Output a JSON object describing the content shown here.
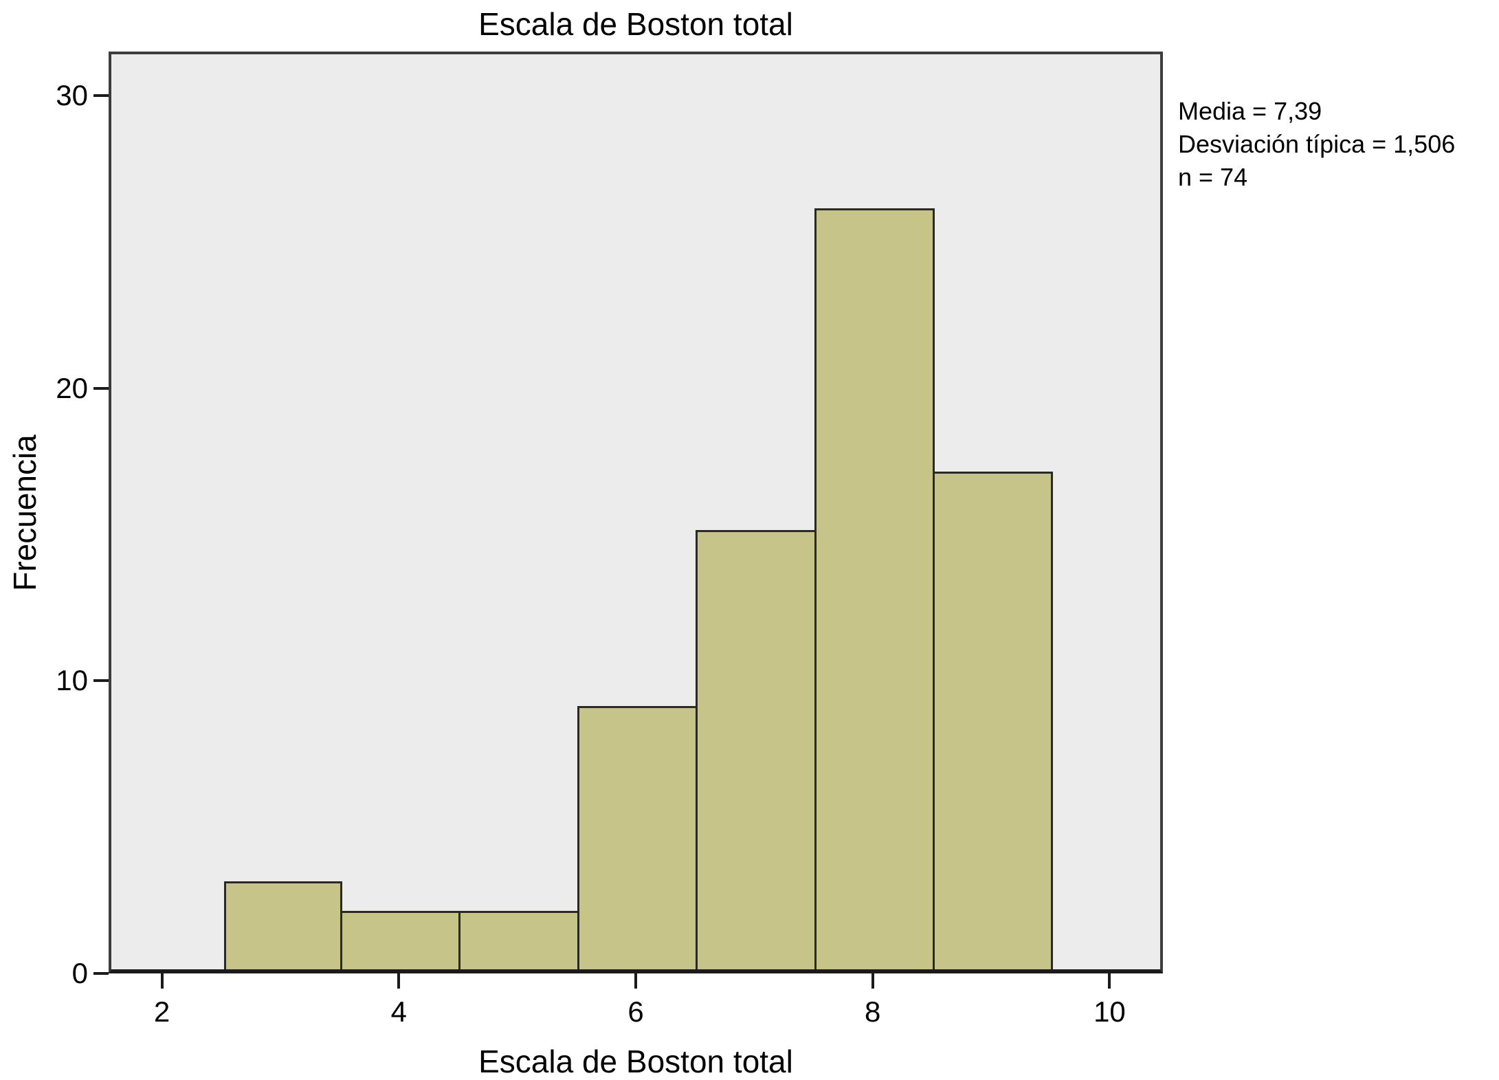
{
  "chart_data": {
    "type": "bar",
    "subtype": "histogram",
    "title": "Escala de Boston total",
    "xlabel": "Escala de Boston total",
    "ylabel": "Frecuencia",
    "bin_edges": [
      2.5,
      3.5,
      4.5,
      5.5,
      6.5,
      7.5,
      8.5,
      9.5
    ],
    "values": [
      3,
      2,
      2,
      9,
      15,
      26,
      17
    ],
    "xticks": [
      2,
      4,
      6,
      8,
      10
    ],
    "yticks": [
      0,
      10,
      20,
      30
    ],
    "xlim": [
      1.55,
      10.45
    ],
    "ylim": [
      0,
      31.5
    ],
    "grid": "off",
    "legend": "none",
    "stats": [
      "Media = 7,39",
      "Desviación típica = 1,506",
      "n = 74"
    ],
    "colors": {
      "bar_fill": "#C6C489",
      "bar_border": "#2A2A22",
      "plot_bg": "#ECECEC",
      "plot_border": "#3D3D3D",
      "axis_line": "#1B1B1B",
      "text": "#000000",
      "background": "#FFFFFF"
    }
  }
}
